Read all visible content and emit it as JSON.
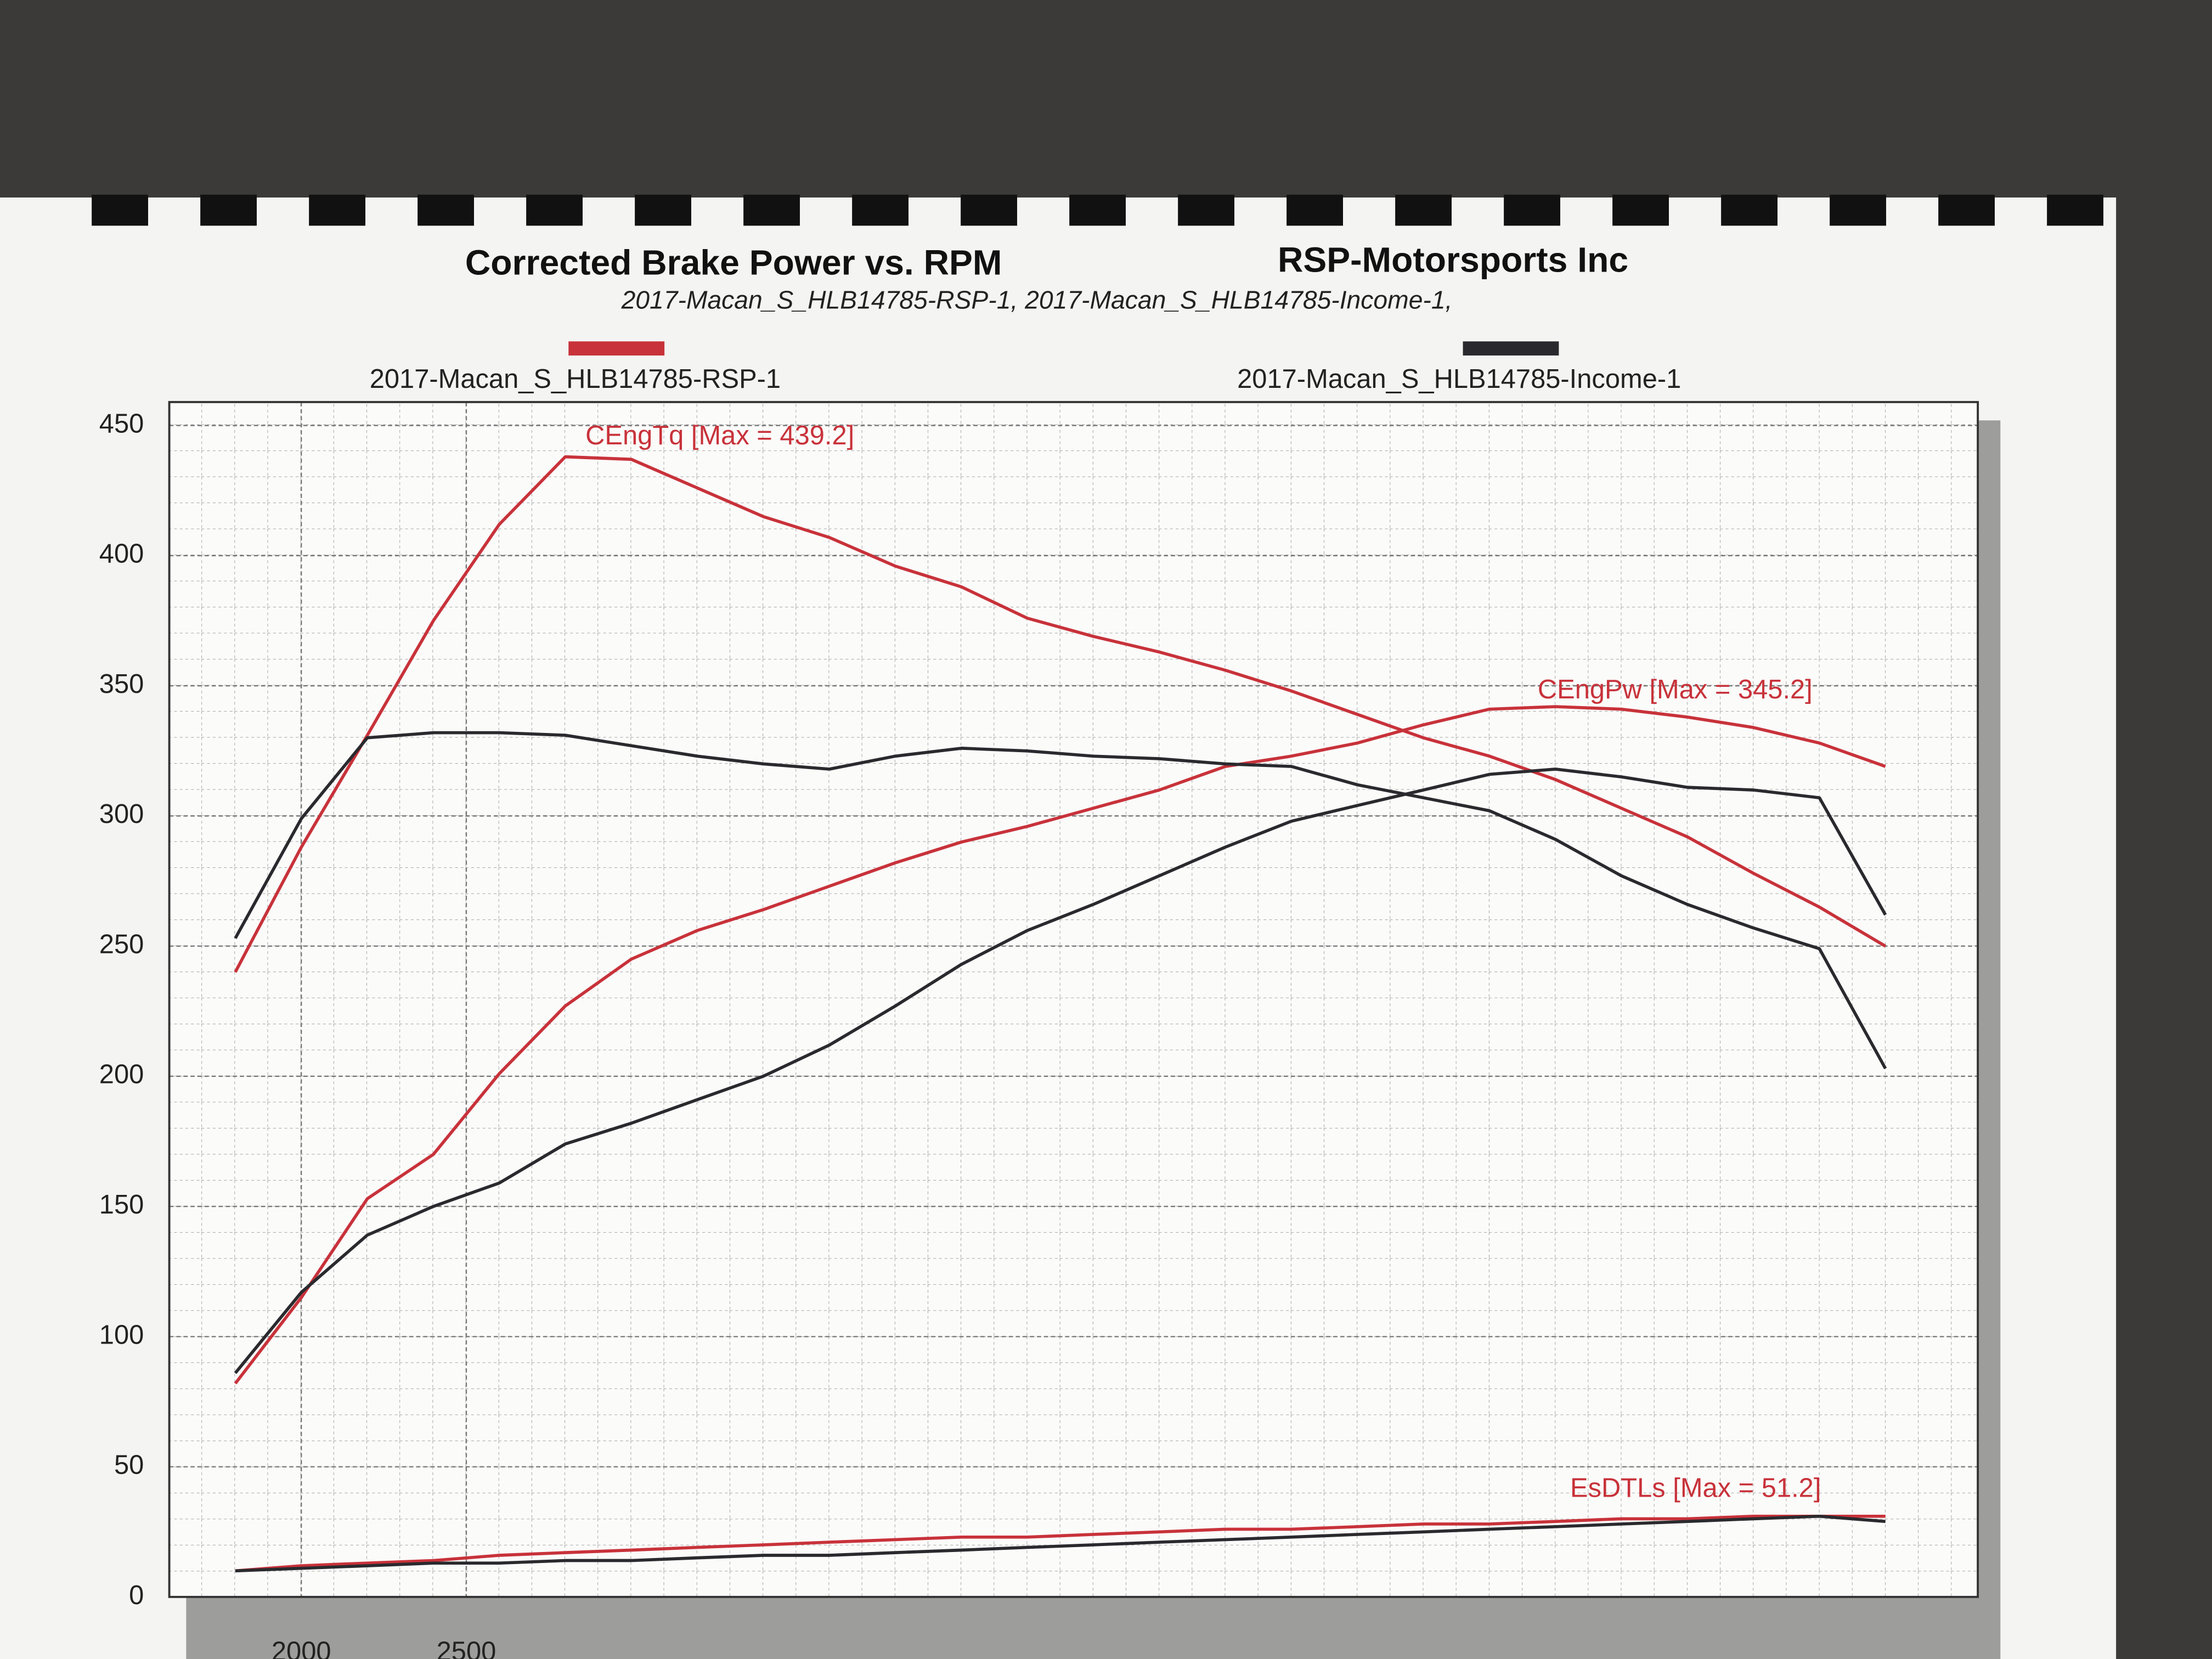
{
  "chart_data": {
    "type": "line",
    "title": "Corrected Brake Power vs. RPM",
    "company": "RSP-Motorsports Inc",
    "subtitle": "2017-Macan_S_HLB14785-RSP-1, 2017-Macan_S_HLB14785-Income-1,",
    "legend": [
      {
        "name": "2017-Macan_S_HLB14785-RSP-1",
        "color": "#c8323a"
      },
      {
        "name": "2017-Macan_S_HLB14785-Income-1",
        "color": "#2a2a2e"
      }
    ],
    "x": [
      1800,
      2000,
      2200,
      2400,
      2600,
      2800,
      3000,
      3200,
      3400,
      3600,
      3800,
      4000,
      4200,
      4400,
      4600,
      4800,
      5000,
      5200,
      5400,
      5600,
      5800,
      6000,
      6200,
      6400,
      6600,
      6800
    ],
    "series": [
      {
        "color": "#c8323a",
        "values": [
          240,
          288,
          331,
          375,
          412,
          438,
          437,
          426,
          415,
          407,
          396,
          388,
          376,
          369,
          363,
          356,
          348,
          339,
          330,
          323,
          314,
          303,
          292,
          278,
          265,
          250
        ]
      },
      {
        "color": "#c8323a",
        "values": [
          82,
          115,
          153,
          170,
          201,
          227,
          245,
          256,
          264,
          273,
          282,
          290,
          296,
          303,
          310,
          319,
          323,
          328,
          335,
          341,
          342,
          341,
          338,
          334,
          328,
          319
        ]
      },
      {
        "color": "#c8323a",
        "values": [
          10,
          12,
          13,
          14,
          16,
          17,
          18,
          19,
          20,
          21,
          22,
          23,
          23,
          24,
          25,
          26,
          26,
          27,
          28,
          28,
          29,
          30,
          30,
          31,
          31,
          31
        ]
      },
      {
        "color": "#2a2a2e",
        "values": [
          253,
          299,
          330,
          332,
          332,
          331,
          327,
          323,
          320,
          318,
          323,
          326,
          325,
          323,
          322,
          320,
          319,
          312,
          307,
          302,
          291,
          277,
          266,
          257,
          249,
          203
        ]
      },
      {
        "color": "#2a2a2e",
        "values": [
          86,
          117,
          139,
          150,
          159,
          174,
          182,
          191,
          200,
          212,
          227,
          243,
          256,
          266,
          277,
          288,
          298,
          304,
          310,
          316,
          318,
          315,
          311,
          310,
          307,
          262
        ]
      },
      {
        "color": "#2a2a2e",
        "values": [
          10,
          11,
          12,
          13,
          13,
          14,
          14,
          15,
          16,
          16,
          17,
          18,
          19,
          20,
          21,
          22,
          23,
          24,
          25,
          26,
          27,
          28,
          29,
          30,
          31,
          29
        ]
      }
    ],
    "annotations": [
      "CEngTq [Max = 439.2]",
      "CEngPw [Max = 345.2]",
      "EsDTLs [Max = 51.2]"
    ],
    "xlim": [
      1600,
      7080
    ],
    "xticks": [
      2000,
      2500
    ],
    "ylim": [
      0,
      459
    ],
    "yticks": [
      0,
      50,
      100,
      150,
      200,
      250,
      300,
      350,
      400,
      450
    ],
    "grid": true
  }
}
